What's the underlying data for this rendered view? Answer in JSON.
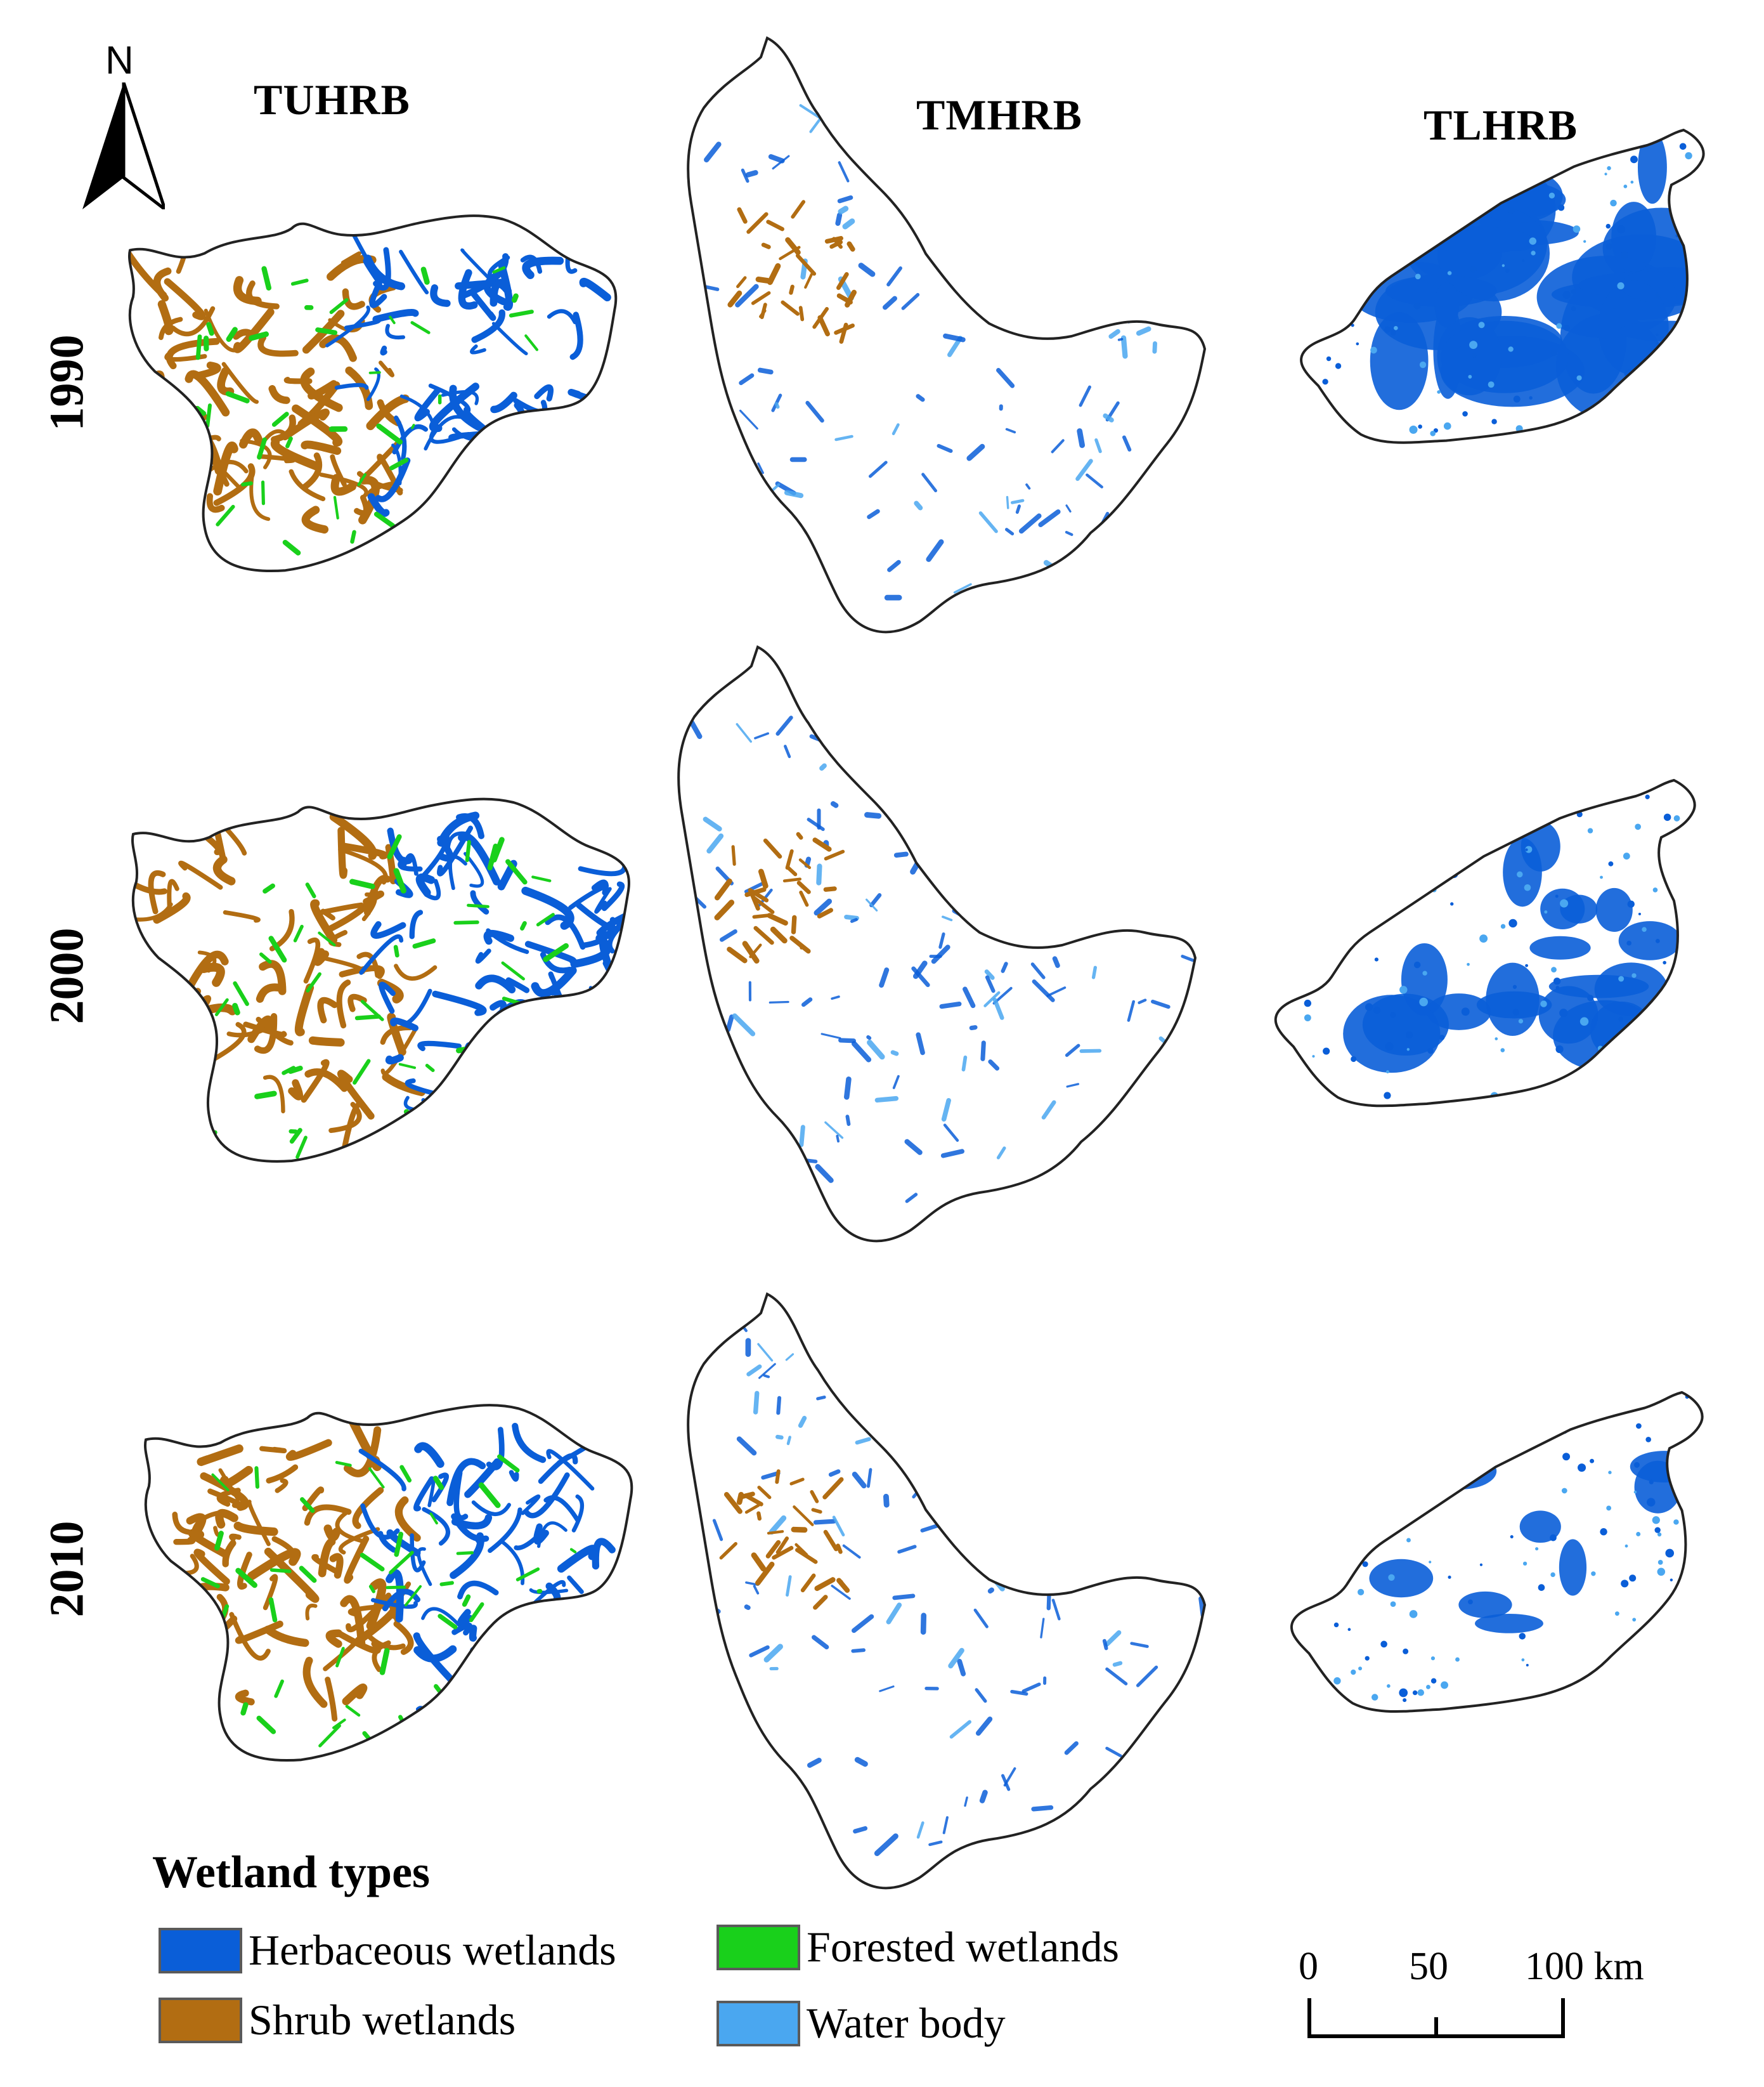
{
  "north_arrow": {
    "label": "N"
  },
  "columns": [
    "TUHRB",
    "TMHRB",
    "TLHRB"
  ],
  "rows": [
    "1990",
    "2000",
    "2010"
  ],
  "legend": {
    "title": "Wetland types",
    "items": [
      {
        "label": "Herbaceous wetlands",
        "color": "#0a5ed8"
      },
      {
        "label": "Forested wetlands",
        "color": "#19d01b"
      },
      {
        "label": "Shrub wetlands",
        "color": "#b26d12"
      },
      {
        "label": "Water body",
        "color": "#4aa7f0"
      }
    ]
  },
  "scale_bar": {
    "ticks": [
      "0",
      "50",
      "100 km"
    ]
  }
}
